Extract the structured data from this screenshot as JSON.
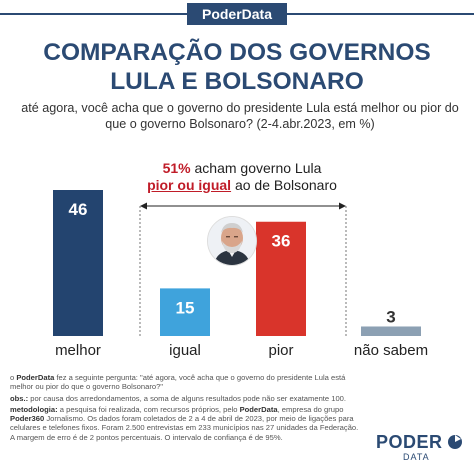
{
  "header": {
    "brand": "PoderData"
  },
  "title_line1": "COMPARAÇÃO DOS GOVERNOS",
  "title_line2": "LULA E BOLSONARO",
  "subtitle": "até agora, você acha que o governo do presidente Lula está melhor ou pior do que o governo Bolsonaro? (2-4.abr.2023, em %)",
  "callout": {
    "pct": "51%",
    "line1_rest": " acham governo Lula",
    "highlight": "pior ou igual",
    "line2_rest": " ao de Bolsonaro"
  },
  "colors": {
    "brand": "#2b4a73",
    "melhor": "#23446f",
    "igual": "#3fa3dc",
    "pior": "#d9342b",
    "nao_sabem": "#8ca0b3",
    "highlight": "#c01c28"
  },
  "chart_data": {
    "type": "bar",
    "categories": [
      "melhor",
      "igual",
      "pior",
      "não sabem"
    ],
    "values": [
      46,
      15,
      36,
      3
    ],
    "ylim": [
      0,
      46
    ],
    "grid": false
  },
  "footer": {
    "question_prefix": "o ",
    "question_brand": "PoderData",
    "question_text": " fez a seguinte pergunta: \"até agora, você acha que o governo do presidente Lula está melhor ou pior do que o governo Bolsonaro?\"",
    "obs_label": "obs.:",
    "obs_text": " por causa dos arredondamentos, a soma de alguns resultados pode não ser exatamente 100.",
    "method_label": "metodologia:",
    "method_text1": " a pesquisa foi realizada, com recursos próprios, pelo ",
    "method_brand": "PoderData",
    "method_text2": ", empresa do grupo ",
    "method_brand2": "Poder360",
    "method_text3": " Jornalismo. Os dados foram coletados de 2 a 4 de abril de 2023, por meio de ligações para celulares e telefones fixos. Foram 2.500 entrevistas em 233 municípios nas 27 unidades da Federação. A margem de erro é de 2 pontos percentuais. O intervalo de confiança é de 95%."
  },
  "logo": {
    "word": "PODER",
    "sub": "DATA"
  }
}
